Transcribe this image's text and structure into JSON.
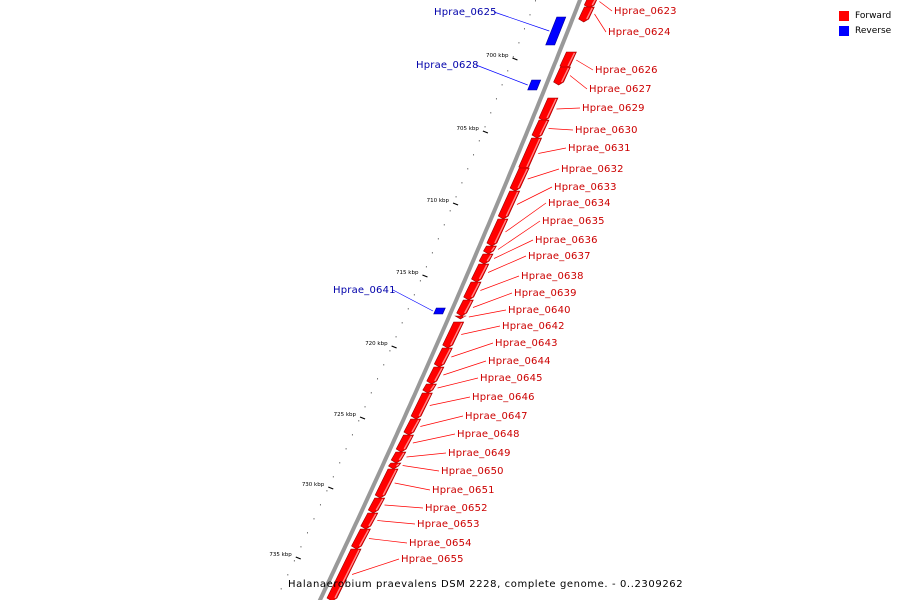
{
  "colors": {
    "forward": "#ff0000",
    "reverse": "#0000ff",
    "backbone": "#999999",
    "forward_label": "#cc0000",
    "reverse_label": "#0000aa"
  },
  "legend": {
    "forward": "Forward",
    "reverse": "Reverse"
  },
  "caption": "Halanaerobium praevalens DSM 2228, complete genome. - 0..2309262",
  "ticks": [
    "700 kbp",
    "705 kbp",
    "710 kbp",
    "715 kbp",
    "720 kbp",
    "725 kbp",
    "730 kbp",
    "735 kbp"
  ],
  "genes": [
    {
      "name": "Hprae_0623",
      "strand": "forward"
    },
    {
      "name": "Hprae_0624",
      "strand": "forward"
    },
    {
      "name": "Hprae_0625",
      "strand": "reverse"
    },
    {
      "name": "Hprae_0626",
      "strand": "forward"
    },
    {
      "name": "Hprae_0627",
      "strand": "forward"
    },
    {
      "name": "Hprae_0628",
      "strand": "reverse"
    },
    {
      "name": "Hprae_0629",
      "strand": "forward"
    },
    {
      "name": "Hprae_0630",
      "strand": "forward"
    },
    {
      "name": "Hprae_0631",
      "strand": "forward"
    },
    {
      "name": "Hprae_0632",
      "strand": "forward"
    },
    {
      "name": "Hprae_0633",
      "strand": "forward"
    },
    {
      "name": "Hprae_0634",
      "strand": "forward"
    },
    {
      "name": "Hprae_0635",
      "strand": "forward"
    },
    {
      "name": "Hprae_0636",
      "strand": "forward"
    },
    {
      "name": "Hprae_0637",
      "strand": "forward"
    },
    {
      "name": "Hprae_0638",
      "strand": "forward"
    },
    {
      "name": "Hprae_0639",
      "strand": "forward"
    },
    {
      "name": "Hprae_0640",
      "strand": "forward"
    },
    {
      "name": "Hprae_0641",
      "strand": "reverse"
    },
    {
      "name": "Hprae_0642",
      "strand": "forward"
    },
    {
      "name": "Hprae_0643",
      "strand": "forward"
    },
    {
      "name": "Hprae_0644",
      "strand": "forward"
    },
    {
      "name": "Hprae_0645",
      "strand": "forward"
    },
    {
      "name": "Hprae_0646",
      "strand": "forward"
    },
    {
      "name": "Hprae_0647",
      "strand": "forward"
    },
    {
      "name": "Hprae_0648",
      "strand": "forward"
    },
    {
      "name": "Hprae_0649",
      "strand": "forward"
    },
    {
      "name": "Hprae_0650",
      "strand": "forward"
    },
    {
      "name": "Hprae_0651",
      "strand": "forward"
    },
    {
      "name": "Hprae_0652",
      "strand": "forward"
    },
    {
      "name": "Hprae_0653",
      "strand": "forward"
    },
    {
      "name": "Hprae_0654",
      "strand": "forward"
    },
    {
      "name": "Hprae_0655",
      "strand": "forward"
    }
  ]
}
